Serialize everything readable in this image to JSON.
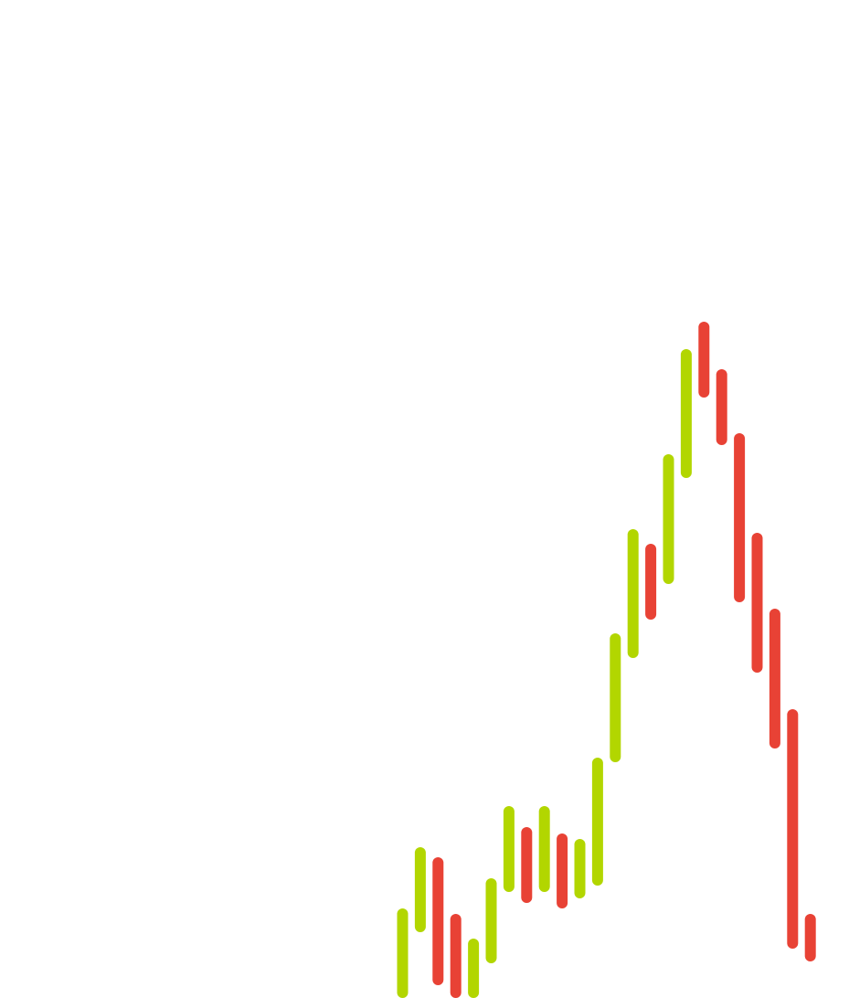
{
  "chart_data": {
    "type": "bar",
    "title": "",
    "xlabel": "",
    "ylabel": "",
    "ylim": [
      0,
      1092
    ],
    "grid": false,
    "legend": "none",
    "colors": {
      "up": "#b2d600",
      "down": "#e84235"
    },
    "bars": [
      {
        "low": 0,
        "high": 98,
        "direction": "up"
      },
      {
        "low": 72,
        "high": 165,
        "direction": "up"
      },
      {
        "low": 14,
        "high": 154,
        "direction": "down"
      },
      {
        "low": 0,
        "high": 92,
        "direction": "down"
      },
      {
        "low": 0,
        "high": 65,
        "direction": "up"
      },
      {
        "low": 38,
        "high": 131,
        "direction": "up"
      },
      {
        "low": 116,
        "high": 210,
        "direction": "up"
      },
      {
        "low": 104,
        "high": 187,
        "direction": "down"
      },
      {
        "low": 116,
        "high": 210,
        "direction": "up"
      },
      {
        "low": 98,
        "high": 180,
        "direction": "down"
      },
      {
        "low": 109,
        "high": 174,
        "direction": "up"
      },
      {
        "low": 123,
        "high": 263,
        "direction": "up"
      },
      {
        "low": 258,
        "high": 399,
        "direction": "up"
      },
      {
        "low": 372,
        "high": 513,
        "direction": "up"
      },
      {
        "low": 414,
        "high": 497,
        "direction": "down"
      },
      {
        "low": 453,
        "high": 595,
        "direction": "up"
      },
      {
        "low": 569,
        "high": 710,
        "direction": "up"
      },
      {
        "low": 657,
        "high": 740,
        "direction": "down"
      },
      {
        "low": 605,
        "high": 688,
        "direction": "down"
      },
      {
        "low": 433,
        "high": 618,
        "direction": "down"
      },
      {
        "low": 356,
        "high": 509,
        "direction": "down"
      },
      {
        "low": 273,
        "high": 426,
        "direction": "down"
      },
      {
        "low": 54,
        "high": 316,
        "direction": "down"
      },
      {
        "low": 40,
        "high": 92,
        "direction": "down"
      }
    ]
  }
}
